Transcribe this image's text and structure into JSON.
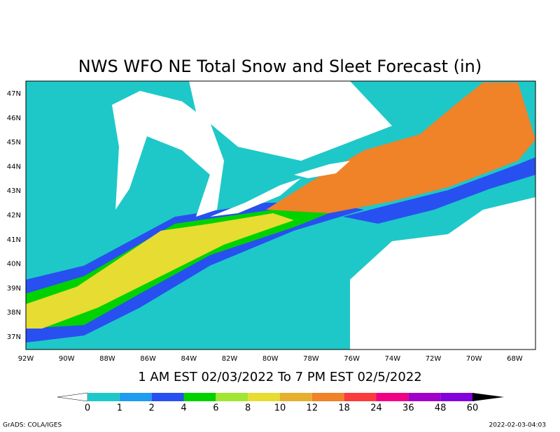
{
  "title": "NWS WFO NE Total Snow and Sleet Forecast (in)",
  "subtitle": "1 AM EST 02/03/2022 To 7 PM EST 02/5/2022",
  "map": {
    "lon_labels": [
      "92W",
      "90W",
      "88W",
      "86W",
      "84W",
      "82W",
      "80W",
      "78W",
      "76W",
      "74W",
      "72W",
      "70W",
      "68W"
    ],
    "lat_labels": [
      "47N",
      "46N",
      "45N",
      "44N",
      "43N",
      "42N",
      "41N",
      "40N",
      "39N",
      "38N",
      "37N"
    ]
  },
  "colorbar": {
    "labels": [
      0,
      1,
      2,
      4,
      6,
      8,
      10,
      12,
      18,
      24,
      36,
      48,
      60
    ],
    "colors": [
      "#1ec8c8",
      "#1e9cf0",
      "#2850f0",
      "#00d200",
      "#a0e632",
      "#e6dc32",
      "#e6af2d",
      "#f08228",
      "#fa3c3c",
      "#f00082",
      "#a000c8",
      "#8200dc"
    ],
    "low_color": "#ffffff",
    "high_color": "#000000"
  },
  "footer": {
    "left": "GrADS: COLA/IGES",
    "right": "2022-02-03-04:03"
  }
}
